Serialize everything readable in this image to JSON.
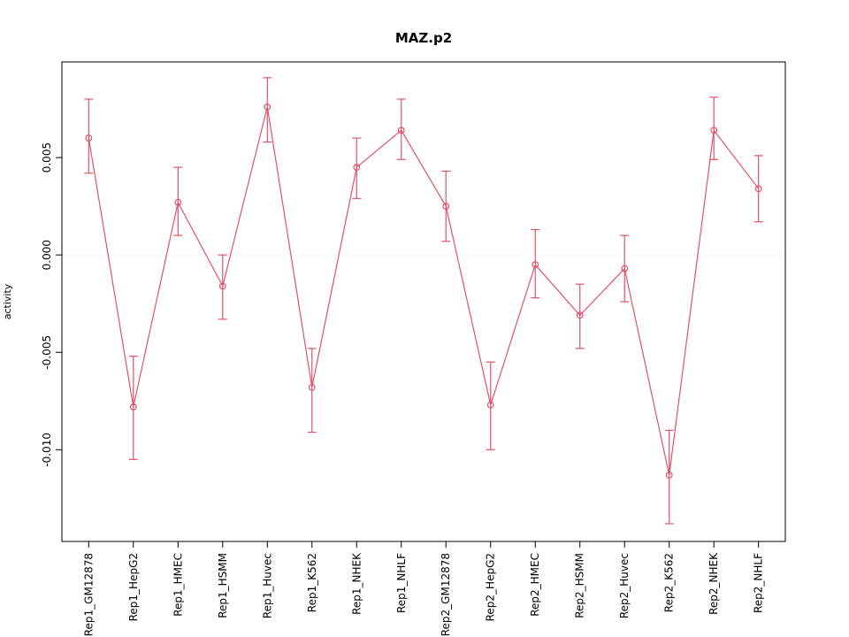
{
  "title": "MAZ.p2",
  "chart_data": {
    "type": "line",
    "title": "MAZ.p2",
    "xlabel": "",
    "ylabel": "activity",
    "categories": [
      "Rep1_GM12878",
      "Rep1_HepG2",
      "Rep1_HMEC",
      "Rep1_HSMM",
      "Rep1_Huvec",
      "Rep1_K562",
      "Rep1_NHEK",
      "Rep1_NHLF",
      "Rep2_GM12878",
      "Rep2_HepG2",
      "Rep2_HMEC",
      "Rep2_HSMM",
      "Rep2_Huvec",
      "Rep2_K562",
      "Rep2_NHEK",
      "Rep2_NHLF"
    ],
    "series": [
      {
        "name": "activity",
        "color": "#DF536B",
        "marker": "open-circle",
        "values": [
          0.006,
          -0.0078,
          0.0027,
          -0.0016,
          0.0076,
          -0.0068,
          0.0045,
          0.0064,
          0.0025,
          -0.0077,
          -0.0005,
          -0.0031,
          -0.0007,
          -0.0113,
          0.0064,
          0.0034
        ],
        "err_low": [
          0.0042,
          -0.0105,
          0.001,
          -0.0033,
          0.0058,
          -0.0091,
          0.0029,
          0.0049,
          0.0007,
          -0.01,
          -0.0022,
          -0.0048,
          -0.0024,
          -0.0138,
          0.0049,
          0.0017
        ],
        "err_high": [
          0.008,
          -0.0052,
          0.0045,
          0.0,
          0.0091,
          -0.0048,
          0.006,
          0.008,
          0.0043,
          -0.0055,
          0.0013,
          -0.0015,
          0.001,
          -0.009,
          0.0081,
          0.0051
        ]
      }
    ],
    "ylim": [
      -0.01471,
      0.00991
    ],
    "yticks": [
      0.005,
      0.0,
      -0.005,
      -0.01
    ],
    "ytick_labels": [
      "0.005",
      "0.000",
      "-0.005",
      "-0.010"
    ],
    "zero_line": {
      "y": 0,
      "style": "dotted",
      "color": "#d9d9d9"
    },
    "grid": false,
    "legend": false,
    "box_color": "#000000",
    "background": "#ffffff"
  }
}
